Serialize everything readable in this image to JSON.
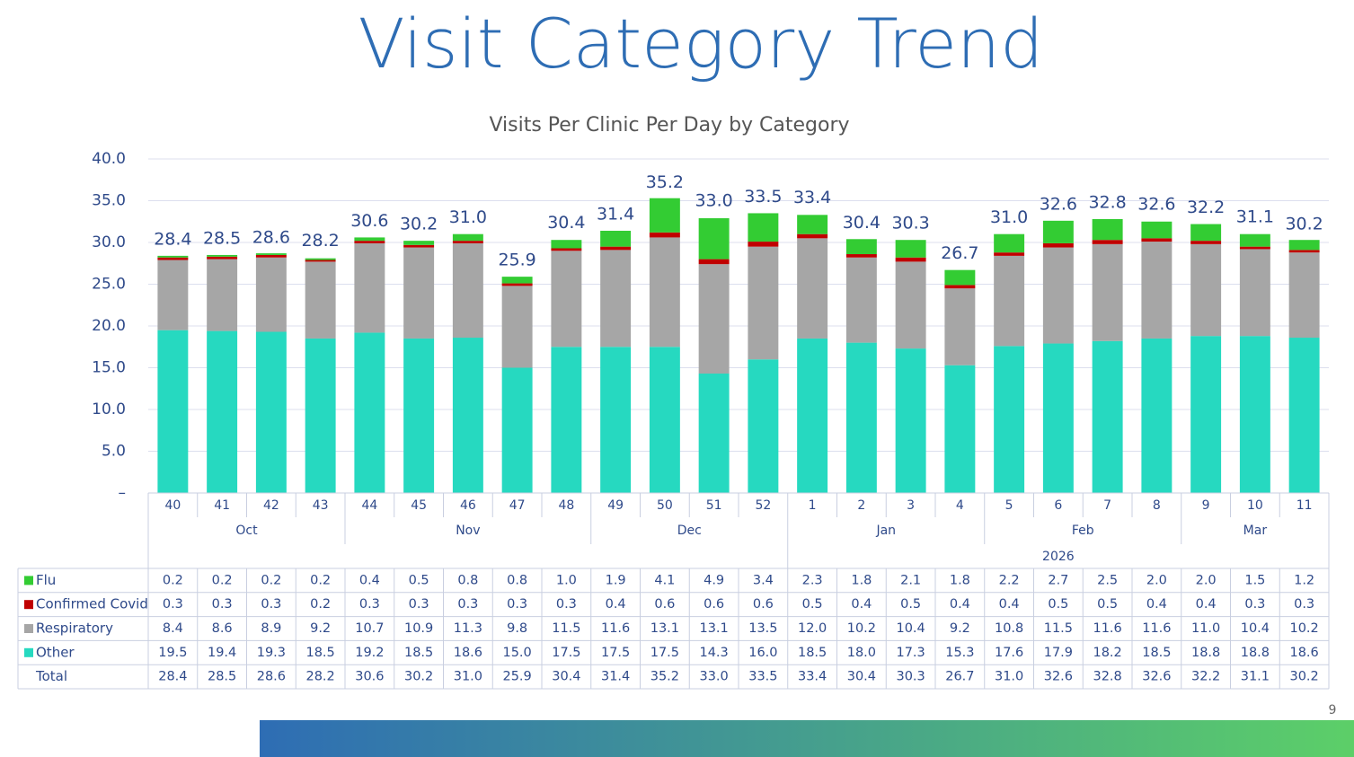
{
  "chart_data": {
    "type": "stacked-bar",
    "title": "Visit Category Trend",
    "subtitle": "Visits Per Clinic Per Day by Category",
    "page_number": "9",
    "categories": [
      "40",
      "41",
      "42",
      "43",
      "44",
      "45",
      "46",
      "47",
      "48",
      "49",
      "50",
      "51",
      "52",
      "1",
      "2",
      "3",
      "4",
      "5",
      "6",
      "7",
      "8",
      "9",
      "10",
      "11"
    ],
    "month_labels": [
      "Oct",
      null,
      null,
      null,
      "Nov",
      null,
      null,
      null,
      null,
      "Dec",
      null,
      null,
      null,
      "Jan",
      null,
      null,
      null,
      "Feb",
      null,
      null,
      null,
      "Mar",
      null,
      null
    ],
    "year_labels": [
      null,
      null,
      null,
      null,
      null,
      null,
      null,
      null,
      null,
      null,
      null,
      null,
      null,
      "2026",
      null,
      null,
      null,
      null,
      null,
      null,
      null,
      null,
      null,
      null
    ],
    "series": [
      {
        "name": "Flu",
        "color": "#33cc33",
        "values": [
          0.2,
          0.2,
          0.2,
          0.2,
          0.4,
          0.5,
          0.8,
          0.8,
          1.0,
          1.9,
          4.1,
          4.9,
          3.4,
          2.3,
          1.8,
          2.1,
          1.8,
          2.2,
          2.7,
          2.5,
          2.0,
          2.0,
          1.5,
          1.2
        ],
        "value_labels": [
          "0.2",
          "0.2",
          "0.2",
          "0.2",
          "0.4",
          "0.5",
          "0.8",
          "0.8",
          "1.0",
          "1.9",
          "4.1",
          "4.9",
          "3.4",
          "2.3",
          "1.8",
          "2.1",
          "1.8",
          "2.2",
          "2.7",
          "2.5",
          "2.0",
          "2.0",
          "1.5",
          "1.2"
        ]
      },
      {
        "name": "Confirmed Covid",
        "color": "#c00000",
        "values": [
          0.3,
          0.3,
          0.3,
          0.2,
          0.3,
          0.3,
          0.3,
          0.3,
          0.3,
          0.4,
          0.6,
          0.6,
          0.6,
          0.5,
          0.4,
          0.5,
          0.4,
          0.4,
          0.5,
          0.5,
          0.4,
          0.4,
          0.3,
          0.3
        ],
        "value_labels": [
          "0.3",
          "0.3",
          "0.3",
          "0.2",
          "0.3",
          "0.3",
          "0.3",
          "0.3",
          "0.3",
          "0.4",
          "0.6",
          "0.6",
          "0.6",
          "0.5",
          "0.4",
          "0.5",
          "0.4",
          "0.4",
          "0.5",
          "0.5",
          "0.4",
          "0.4",
          "0.3",
          "0.3"
        ]
      },
      {
        "name": "Respiratory",
        "color": "#a6a6a6",
        "values": [
          8.4,
          8.6,
          8.9,
          9.2,
          10.7,
          10.9,
          11.3,
          9.8,
          11.5,
          11.6,
          13.1,
          13.1,
          13.5,
          12.0,
          10.2,
          10.4,
          9.2,
          10.8,
          11.5,
          11.6,
          11.6,
          11.0,
          10.4,
          10.2
        ],
        "value_labels": [
          "8.4",
          "8.6",
          "8.9",
          "9.2",
          "10.7",
          "10.9",
          "11.3",
          "9.8",
          "11.5",
          "11.6",
          "13.1",
          "13.1",
          "13.5",
          "12.0",
          "10.2",
          "10.4",
          "9.2",
          "10.8",
          "11.5",
          "11.6",
          "11.6",
          "11.0",
          "10.4",
          "10.2"
        ]
      },
      {
        "name": "Other",
        "color": "#26d9c0",
        "values": [
          19.5,
          19.4,
          19.3,
          18.5,
          19.2,
          18.5,
          18.6,
          15.0,
          17.5,
          17.5,
          17.5,
          14.3,
          16.0,
          18.5,
          18.0,
          17.3,
          15.3,
          17.6,
          17.9,
          18.2,
          18.5,
          18.8,
          18.8,
          18.6
        ],
        "value_labels": [
          "19.5",
          "19.4",
          "19.3",
          "18.5",
          "19.2",
          "18.5",
          "18.6",
          "15.0",
          "17.5",
          "17.5",
          "17.5",
          "14.3",
          "16.0",
          "18.5",
          "18.0",
          "17.3",
          "15.3",
          "17.6",
          "17.9",
          "18.2",
          "18.5",
          "18.8",
          "18.8",
          "18.6"
        ]
      }
    ],
    "totals": {
      "name": "Total",
      "values": [
        28.4,
        28.5,
        28.6,
        28.2,
        30.6,
        30.2,
        31.0,
        25.9,
        30.4,
        31.4,
        35.2,
        33.0,
        33.5,
        33.4,
        30.4,
        30.3,
        26.7,
        31.0,
        32.6,
        32.8,
        32.6,
        32.2,
        31.1,
        30.2
      ],
      "value_labels": [
        "28.4",
        "28.5",
        "28.6",
        "28.2",
        "30.6",
        "30.2",
        "31.0",
        "25.9",
        "30.4",
        "31.4",
        "35.2",
        "33.0",
        "33.5",
        "33.4",
        "30.4",
        "30.3",
        "26.7",
        "31.0",
        "32.6",
        "32.8",
        "32.6",
        "32.2",
        "31.1",
        "30.2"
      ]
    },
    "ylim": [
      0,
      40
    ],
    "yticks": [
      {
        "value": 0,
        "label": "–"
      },
      {
        "value": 5,
        "label": "5.0"
      },
      {
        "value": 10,
        "label": "10.0"
      },
      {
        "value": 15,
        "label": "15.0"
      },
      {
        "value": 20,
        "label": "20.0"
      },
      {
        "value": 25,
        "label": "25.0"
      },
      {
        "value": 30,
        "label": "30.0"
      },
      {
        "value": 35,
        "label": "35.0"
      },
      {
        "value": 40,
        "label": "40.0"
      }
    ],
    "grid": true
  }
}
